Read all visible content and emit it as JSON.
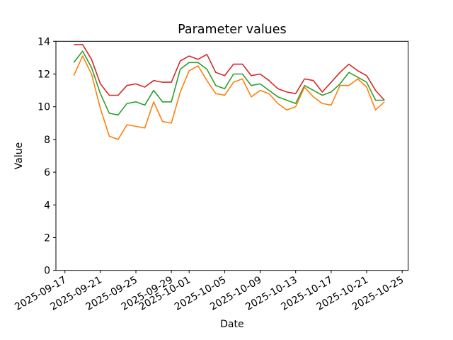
{
  "chart_data": {
    "type": "line",
    "title": "Parameter values",
    "xlabel": "Date",
    "ylabel": "Value",
    "grid": false,
    "legend": "none",
    "ylim": [
      0,
      14
    ],
    "yticks": [
      0,
      2,
      4,
      6,
      8,
      10,
      12,
      14
    ],
    "xlim_days": [
      -1.01,
      38.68
    ],
    "x_tick_labels": [
      "2025-09-17",
      "2025-09-21",
      "2025-09-25",
      "2025-09-29",
      "2025-10-01",
      "2025-10-05",
      "2025-10-09",
      "2025-10-13",
      "2025-10-17",
      "2025-10-21",
      "2025-10-25"
    ],
    "x_dates": [
      "2025-09-18",
      "2025-09-19",
      "2025-09-20",
      "2025-09-21",
      "2025-09-22",
      "2025-09-23",
      "2025-09-24",
      "2025-09-25",
      "2025-09-26",
      "2025-09-27",
      "2025-09-28",
      "2025-09-29",
      "2025-09-30",
      "2025-10-01",
      "2025-10-02",
      "2025-10-03",
      "2025-10-04",
      "2025-10-05",
      "2025-10-06",
      "2025-10-07",
      "2025-10-08",
      "2025-10-09",
      "2025-10-10",
      "2025-10-11",
      "2025-10-12",
      "2025-10-13",
      "2025-10-14",
      "2025-10-15",
      "2025-10-16",
      "2025-10-17",
      "2025-10-18",
      "2025-10-19",
      "2025-10-20",
      "2025-10-21",
      "2025-10-22",
      "2025-10-23"
    ],
    "series": [
      {
        "name": "red",
        "color": "#d62728",
        "values": [
          13.8,
          13.8,
          12.9,
          11.4,
          10.7,
          10.7,
          11.3,
          11.4,
          11.2,
          11.6,
          11.5,
          11.5,
          12.8,
          13.1,
          12.9,
          13.2,
          12.1,
          11.9,
          12.6,
          12.6,
          11.9,
          12.0,
          11.6,
          11.1,
          10.9,
          10.8,
          11.7,
          11.6,
          10.9,
          11.5,
          12.1,
          12.6,
          12.2,
          11.9,
          11.0,
          10.4
        ]
      },
      {
        "name": "green",
        "color": "#2ca02c",
        "values": [
          12.7,
          13.4,
          12.4,
          10.8,
          9.6,
          9.5,
          10.2,
          10.3,
          10.1,
          11.0,
          10.3,
          10.3,
          12.3,
          12.7,
          12.7,
          12.3,
          11.3,
          11.1,
          12.0,
          12.0,
          11.3,
          11.4,
          11.0,
          10.6,
          10.4,
          10.2,
          11.3,
          11.0,
          10.7,
          10.9,
          11.4,
          12.1,
          11.8,
          11.5,
          10.4,
          10.4
        ]
      },
      {
        "name": "orange",
        "color": "#ff7f0e",
        "values": [
          11.9,
          13.1,
          12.0,
          9.9,
          8.2,
          8.0,
          8.9,
          8.8,
          8.7,
          10.3,
          9.1,
          9.0,
          10.9,
          12.2,
          12.5,
          11.6,
          10.8,
          10.7,
          11.5,
          11.7,
          10.6,
          11.0,
          10.8,
          10.2,
          9.8,
          10.0,
          11.2,
          10.6,
          10.2,
          10.1,
          11.3,
          11.3,
          11.7,
          11.2,
          9.8,
          10.3
        ]
      }
    ]
  }
}
